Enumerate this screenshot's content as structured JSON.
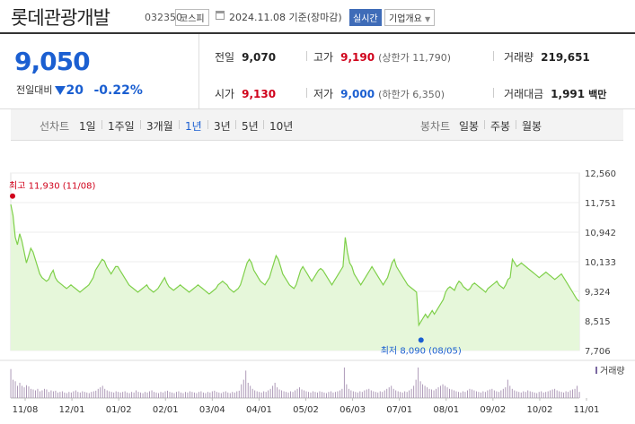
{
  "header": {
    "name": "롯데관광개발",
    "code": "032350",
    "market": "코스피",
    "date": "2024.11.08  기준(장마감)",
    "realtime": "실시간",
    "company_info": "기업개요"
  },
  "summary": {
    "price": "9,050",
    "change_label": "전일대비",
    "change_value": "20",
    "change_pct": "-0.22%",
    "prev_close_label": "전일",
    "prev_close": "9,070",
    "open_label": "시가",
    "open": "9,130",
    "high_label": "고가",
    "high": "9,190",
    "upper_limit": "(상한가 11,790)",
    "low_label": "저가",
    "low": "9,000",
    "lower_limit": "(하한가 6,350)",
    "volume_label": "거래량",
    "volume": "219,651",
    "amount_label": "거래대금",
    "amount": "1,991",
    "amount_unit": "백만"
  },
  "tabs": {
    "line_label": "선차트",
    "periods": [
      "1일",
      "1주일",
      "3개월",
      "1년",
      "3년",
      "5년",
      "10년"
    ],
    "selected": "1년",
    "candle_label": "봉차트",
    "candles": [
      "일봉",
      "주봉",
      "월봉"
    ]
  },
  "colors": {
    "up": "#d0021b",
    "down": "#1b5fd1",
    "line": "#7fd04a",
    "fill": "#e6f7da",
    "volume": "#a58fb0"
  },
  "chart_data": {
    "type": "area",
    "y_ticks": [
      "12,560",
      "11,751",
      "10,942",
      "10,133",
      "9,324",
      "8,515",
      "7,706"
    ],
    "ylim": [
      7706,
      12560
    ],
    "x_ticks": [
      "11/08",
      "12/01",
      "01/02",
      "02/01",
      "03/04",
      "04/01",
      "05/02",
      "06/03",
      "07/01",
      "08/01",
      "09/02",
      "10/02",
      "11/01"
    ],
    "high_annotation": "최고 11,930 (11/08)",
    "low_annotation": "최저 8,090 (08/05)",
    "high": {
      "value": 11930,
      "index": 0
    },
    "low": {
      "value": 8090,
      "index": 184
    },
    "series": [
      {
        "values": [
          11700,
          11400,
          10800,
          10600,
          10900,
          10700,
          10400,
          10100,
          10300,
          10500,
          10400,
          10200,
          10000,
          9800,
          9700,
          9650,
          9600,
          9650,
          9800,
          9900,
          9700,
          9600,
          9550,
          9500,
          9450,
          9400,
          9450,
          9500,
          9450,
          9400,
          9350,
          9300,
          9350,
          9400,
          9450,
          9500,
          9600,
          9700,
          9900,
          10000,
          10100,
          10200,
          10150,
          10000,
          9900,
          9800,
          9900,
          10000,
          10000,
          9900,
          9800,
          9700,
          9600,
          9500,
          9450,
          9400,
          9350,
          9300,
          9350,
          9400,
          9450,
          9500,
          9400,
          9350,
          9300,
          9350,
          9400,
          9500,
          9600,
          9700,
          9550,
          9450,
          9400,
          9350,
          9400,
          9450,
          9500,
          9450,
          9400,
          9350,
          9300,
          9350,
          9400,
          9450,
          9500,
          9450,
          9400,
          9350,
          9300,
          9250,
          9300,
          9350,
          9400,
          9500,
          9550,
          9600,
          9550,
          9500,
          9400,
          9350,
          9300,
          9350,
          9400,
          9500,
          9700,
          9900,
          10100,
          10200,
          10100,
          9900,
          9800,
          9700,
          9600,
          9550,
          9500,
          9600,
          9700,
          9900,
          10100,
          10300,
          10200,
          10000,
          9800,
          9700,
          9600,
          9500,
          9450,
          9400,
          9500,
          9700,
          9900,
          10000,
          9900,
          9800,
          9700,
          9600,
          9700,
          9800,
          9900,
          9950,
          9900,
          9800,
          9700,
          9600,
          9500,
          9600,
          9700,
          9800,
          9900,
          10000,
          10800,
          10400,
          10100,
          10000,
          9800,
          9700,
          9600,
          9500,
          9600,
          9700,
          9800,
          9900,
          10000,
          9900,
          9800,
          9700,
          9600,
          9500,
          9600,
          9700,
          9900,
          10100,
          10200,
          10000,
          9900,
          9800,
          9700,
          9600,
          9500,
          9450,
          9400,
          9350,
          9300,
          8400,
          8500,
          8600,
          8700,
          8600,
          8700,
          8800,
          8700,
          8800,
          8900,
          9000,
          9100,
          9300,
          9400,
          9450,
          9400,
          9350,
          9500,
          9600,
          9550,
          9450,
          9400,
          9350,
          9400,
          9500,
          9550,
          9500,
          9450,
          9400,
          9350,
          9300,
          9400,
          9450,
          9500,
          9550,
          9600,
          9500,
          9450,
          9400,
          9500,
          9650,
          9700,
          10200,
          10100,
          10000,
          10050,
          10100,
          10050,
          10000,
          9950,
          9900,
          9850,
          9800,
          9750,
          9700,
          9750,
          9800,
          9850,
          9800,
          9750,
          9700,
          9650,
          9700,
          9750,
          9800,
          9700,
          9600,
          9500,
          9400,
          9300,
          9200,
          9100,
          9050
        ]
      }
    ],
    "volume_label": "거래량",
    "volume": [
      95,
      60,
      55,
      40,
      50,
      40,
      35,
      42,
      38,
      30,
      28,
      25,
      30,
      22,
      25,
      30,
      28,
      20,
      25,
      22,
      24,
      18,
      20,
      22,
      18,
      16,
      20,
      18,
      22,
      25,
      20,
      18,
      22,
      20,
      18,
      16,
      20,
      22,
      24,
      30,
      35,
      40,
      30,
      25,
      22,
      20,
      18,
      22,
      20,
      18,
      20,
      22,
      18,
      16,
      20,
      18,
      25,
      20,
      18,
      16,
      20,
      18,
      22,
      25,
      20,
      18,
      16,
      20,
      18,
      22,
      24,
      20,
      18,
      16,
      20,
      22,
      18,
      16,
      20,
      18,
      22,
      20,
      18,
      16,
      20,
      22,
      18,
      16,
      20,
      18,
      22,
      24,
      20,
      18,
      16,
      20,
      22,
      18,
      16,
      20,
      18,
      22,
      24,
      45,
      60,
      90,
      50,
      40,
      30,
      25,
      22,
      20,
      18,
      22,
      20,
      25,
      30,
      40,
      50,
      35,
      28,
      25,
      22,
      20,
      18,
      22,
      20,
      25,
      30,
      35,
      28,
      25,
      22,
      20,
      18,
      22,
      20,
      18,
      22,
      20,
      18,
      16,
      20,
      22,
      18,
      20,
      22,
      25,
      30,
      100,
      45,
      30,
      25,
      22,
      20,
      18,
      22,
      20,
      25,
      28,
      30,
      25,
      22,
      20,
      18,
      22,
      20,
      25,
      30,
      35,
      40,
      30,
      25,
      22,
      20,
      18,
      22,
      20,
      25,
      30,
      40,
      60,
      100,
      55,
      45,
      40,
      35,
      30,
      28,
      25,
      30,
      35,
      40,
      45,
      40,
      35,
      30,
      28,
      25,
      22,
      20,
      18,
      22,
      20,
      25,
      30,
      28,
      25,
      22,
      20,
      18,
      22,
      20,
      25,
      28,
      30,
      25,
      22,
      20,
      25,
      30,
      35,
      60,
      40,
      30,
      25,
      22,
      20,
      18,
      22,
      20,
      25,
      22,
      20,
      18,
      16,
      20,
      22,
      18,
      20,
      22,
      25,
      28,
      30,
      25,
      22,
      20,
      18,
      22,
      20,
      25,
      28,
      30,
      40,
      20
    ]
  }
}
